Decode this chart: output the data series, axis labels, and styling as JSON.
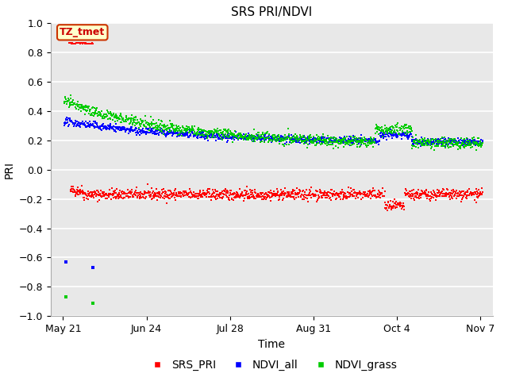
{
  "title": "SRS PRI/NDVI",
  "xlabel": "Time",
  "ylabel": "PRI",
  "ylim": [
    -1.0,
    1.0
  ],
  "x_tick_labels": [
    "May 21",
    "Jun 24",
    "Jul 28",
    "Aug 31",
    "Oct 4",
    "Nov 7"
  ],
  "x_tick_days": [
    0,
    34,
    68,
    102,
    136,
    170
  ],
  "bg_color": "#e8e8e8",
  "fig_bg_color": "#ffffff",
  "label_box_text": "TZ_tmet",
  "label_box_facecolor": "#ffffcc",
  "label_box_edgecolor": "#cc3300",
  "label_box_textcolor": "#cc0000",
  "colors": {
    "SRS_PRI": "#ff0000",
    "NDVI_all": "#0000ff",
    "NDVI_grass": "#00cc00"
  },
  "legend_labels": [
    "SRS_PRI",
    "NDVI_all",
    "NDVI_grass"
  ]
}
